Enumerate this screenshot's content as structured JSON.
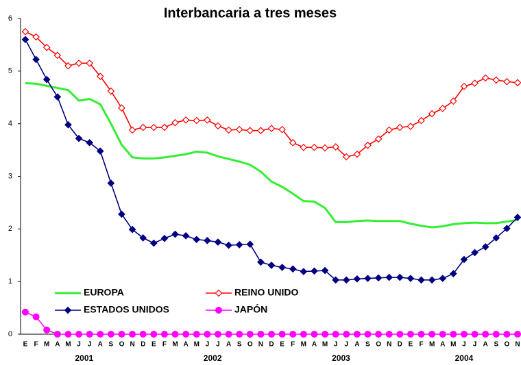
{
  "chart_data": {
    "type": "line",
    "title": "Interbancaria a tres meses",
    "categories": [
      "E",
      "F",
      "M",
      "A",
      "M",
      "J",
      "J",
      "A",
      "S",
      "O",
      "N",
      "D",
      "E",
      "F",
      "M",
      "A",
      "M",
      "J",
      "J",
      "A",
      "S",
      "O",
      "N",
      "D",
      "E",
      "F",
      "M",
      "A",
      "M",
      "J",
      "J",
      "A",
      "S",
      "O",
      "N",
      "D",
      "E",
      "F",
      "M",
      "A",
      "M",
      "J",
      "J",
      "A",
      "S",
      "O",
      "N"
    ],
    "year_labels": [
      "2001",
      "2002",
      "2003",
      "2004"
    ],
    "series": [
      {
        "name": "EUROPA",
        "color": "#33ee33",
        "marker": "none",
        "values": [
          4.77,
          4.76,
          4.72,
          4.68,
          4.64,
          4.44,
          4.47,
          4.37,
          4.0,
          3.6,
          3.36,
          3.34,
          3.34,
          3.36,
          3.39,
          3.42,
          3.47,
          3.45,
          3.38,
          3.33,
          3.28,
          3.22,
          3.09,
          2.9,
          2.8,
          2.67,
          2.53,
          2.52,
          2.4,
          2.13,
          2.13,
          2.15,
          2.16,
          2.15,
          2.15,
          2.15,
          2.1,
          2.06,
          2.03,
          2.05,
          2.09,
          2.11,
          2.12,
          2.11,
          2.11,
          2.14,
          2.17
        ]
      },
      {
        "name": "REINO UNIDO",
        "color": "#ff0000",
        "marker": "diamond-open",
        "values": [
          5.75,
          5.65,
          5.45,
          5.3,
          5.1,
          5.15,
          5.15,
          4.9,
          4.62,
          4.3,
          3.88,
          3.93,
          3.93,
          3.93,
          4.02,
          4.07,
          4.06,
          4.07,
          3.96,
          3.88,
          3.89,
          3.87,
          3.87,
          3.91,
          3.89,
          3.64,
          3.55,
          3.55,
          3.54,
          3.56,
          3.37,
          3.42,
          3.59,
          3.71,
          3.88,
          3.93,
          3.95,
          4.06,
          4.19,
          4.29,
          4.43,
          4.71,
          4.77,
          4.87,
          4.83,
          4.8,
          4.78
        ]
      },
      {
        "name": "ESTADOS UNIDOS",
        "color": "#000080",
        "marker": "diamond",
        "values": [
          5.6,
          5.22,
          4.84,
          4.51,
          3.98,
          3.72,
          3.64,
          3.48,
          2.87,
          2.28,
          1.99,
          1.83,
          1.73,
          1.82,
          1.9,
          1.87,
          1.8,
          1.78,
          1.75,
          1.69,
          1.7,
          1.71,
          1.37,
          1.31,
          1.27,
          1.24,
          1.19,
          1.2,
          1.21,
          1.03,
          1.03,
          1.05,
          1.06,
          1.07,
          1.08,
          1.08,
          1.06,
          1.03,
          1.03,
          1.06,
          1.15,
          1.42,
          1.55,
          1.66,
          1.83,
          2.01,
          2.22
        ]
      },
      {
        "name": "JAPÓN",
        "color": "#ff00ff",
        "marker": "circle",
        "values": [
          0.42,
          0.33,
          0.08,
          0,
          0,
          0,
          0,
          0,
          0,
          0,
          0,
          0,
          0,
          0,
          0,
          0,
          0,
          0,
          0,
          0,
          0,
          0,
          0,
          0,
          0,
          0,
          0,
          0,
          0,
          0,
          0,
          0,
          0,
          0,
          0,
          0,
          0,
          0,
          0,
          0,
          0,
          0,
          0,
          0,
          0,
          0,
          0
        ]
      }
    ],
    "ylim": [
      0,
      6
    ],
    "yticks": [
      0,
      1,
      2,
      3,
      4,
      5,
      6
    ],
    "grid": false
  }
}
